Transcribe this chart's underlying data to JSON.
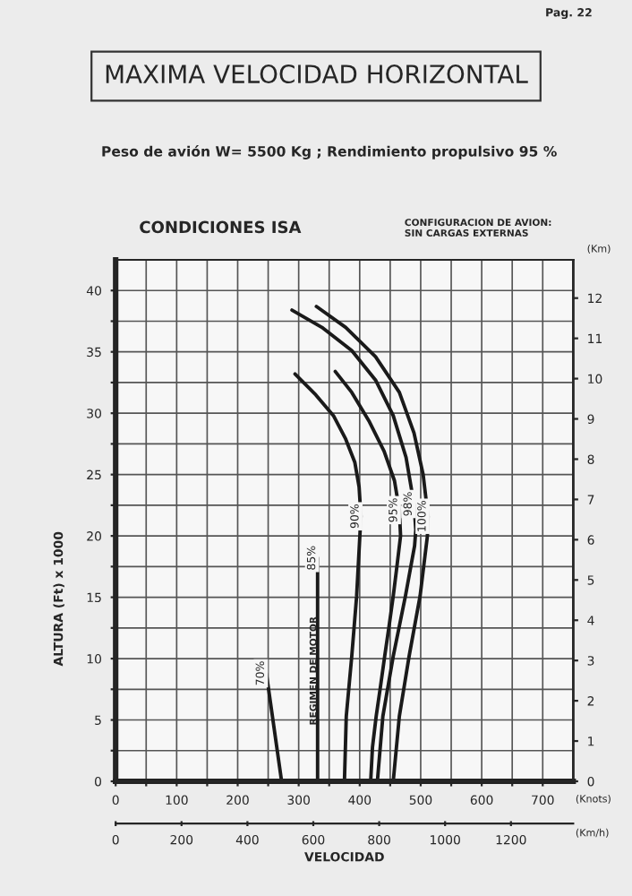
{
  "chart_data": {
    "type": "line",
    "title": "MAXIMA VELOCIDAD HORIZONTAL",
    "subtitle": "Peso de avión W= 5500 Kg ; Rendimiento propulsivo 95 %",
    "xlabel": "VELOCIDAD",
    "ylabel": "ALTURA (Ft) x 1000",
    "annotations": [
      "CONDICIONES ISA",
      "CONFIGURACION DE AVION:\nSIN CARGAS EXTERNAS",
      {
        "text": "REGIMEN DE MOTOR",
        "x": 325,
        "y": 9
      },
      "(Knots)",
      "(Km/h)",
      "(Km)",
      "Pag. 22"
    ],
    "series": [
      {
        "name": "70%",
        "color": "#1a1a1a",
        "x": [
          272,
          247
        ],
        "values": [
          0,
          8.8
        ]
      },
      {
        "name": "85%",
        "color": "#1a1a1a",
        "x": [
          331,
          331
        ],
        "values": [
          0,
          18.2
        ]
      },
      {
        "name": "90%",
        "color": "#1a1a1a",
        "x": [
          375,
          378,
          387,
          395,
          402,
          399,
          392,
          377,
          357,
          328,
          294
        ],
        "values": [
          0,
          5.3,
          10.2,
          15.1,
          21.6,
          24.0,
          26.0,
          27.9,
          29.8,
          31.5,
          33.2
        ]
      },
      {
        "name": "95%",
        "color": "#1a1a1a",
        "x": [
          418,
          421,
          427,
          434,
          441,
          448,
          455,
          461,
          467,
          465,
          457,
          440,
          416,
          387,
          360
        ],
        "values": [
          0,
          2.8,
          5.3,
          7.7,
          10.2,
          12.6,
          15.1,
          17.5,
          20.0,
          22.1,
          24.5,
          26.9,
          29.3,
          31.7,
          33.4
        ]
      },
      {
        "name": "98%",
        "color": "#1a1a1a",
        "x": [
          429,
          438,
          455,
          475,
          490,
          492,
          489,
          476,
          455,
          426,
          387,
          338,
          289
        ],
        "values": [
          0,
          5.3,
          10.2,
          15.1,
          19.2,
          20.5,
          22.6,
          26.4,
          29.8,
          32.7,
          35.1,
          37.0,
          38.4
        ]
      },
      {
        "name": "100%",
        "color": "#1a1a1a",
        "x": [
          455,
          465,
          481,
          499,
          511,
          512,
          504,
          489,
          465,
          426,
          377,
          329
        ],
        "values": [
          0,
          5.3,
          10.2,
          15.1,
          20.0,
          21.6,
          25.0,
          28.4,
          31.7,
          34.6,
          37.0,
          38.7
        ]
      }
    ],
    "xlim": [
      0,
      750
    ],
    "xticks": [
      0,
      {
        "value": 50,
        "label": null
      },
      100,
      {
        "value": 150,
        "label": null
      },
      200,
      {
        "value": 250,
        "label": null
      },
      300,
      {
        "value": 350,
        "label": null
      },
      400,
      {
        "value": 450,
        "label": null
      },
      500,
      {
        "value": 550,
        "label": null
      },
      600,
      {
        "value": 650,
        "label": null
      },
      700
    ],
    "ylim": [
      0,
      42.5
    ],
    "yticks": [
      0,
      {
        "value": 2.5,
        "label": null
      },
      5,
      {
        "value": 7.5,
        "label": null
      },
      10,
      {
        "value": 12.5,
        "label": null
      },
      15,
      {
        "value": 17.5,
        "label": null
      },
      20,
      {
        "value": 22.5,
        "label": null
      },
      25,
      {
        "value": 27.5,
        "label": null
      },
      30,
      {
        "value": 32.5,
        "label": null
      },
      35,
      {
        "value": 37.5,
        "label": null
      },
      40
    ],
    "x2lim": [
      0,
      1389
    ],
    "x2ticks": [
      0,
      200,
      400,
      600,
      800,
      1000,
      1200
    ],
    "y2lim": [
      0,
      12.95
    ],
    "y2ticks": [
      0,
      1,
      2,
      3,
      4,
      5,
      6,
      7,
      8,
      9,
      10,
      11,
      12
    ],
    "grid": true,
    "legend": false,
    "marker": "none",
    "line_style": "solid"
  }
}
